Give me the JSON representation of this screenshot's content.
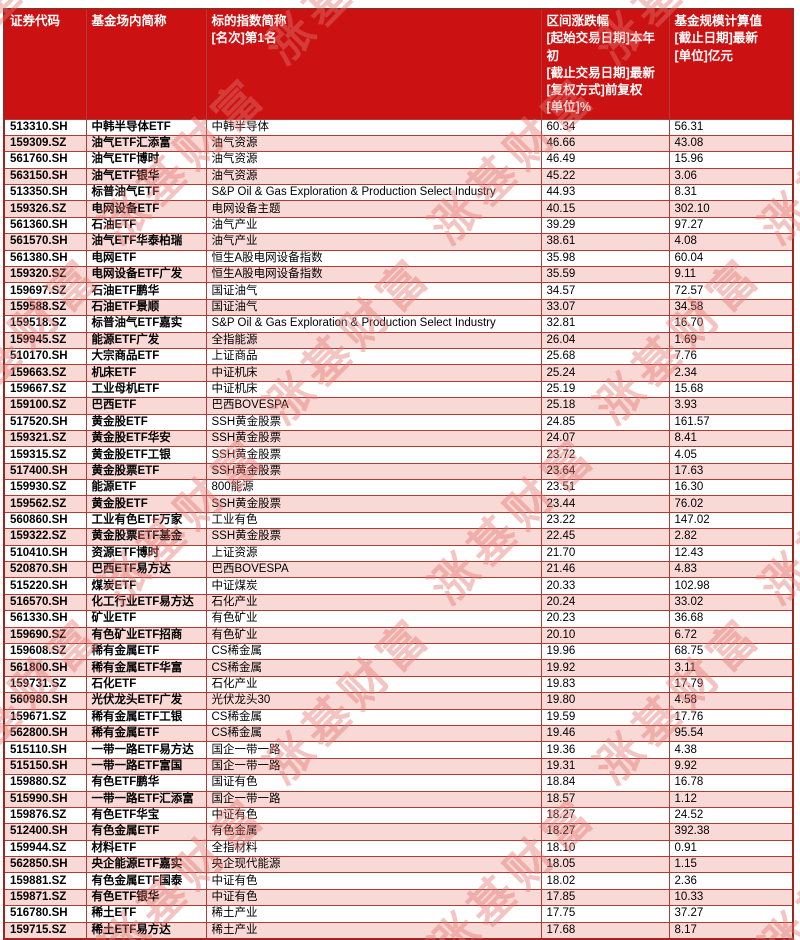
{
  "watermark": {
    "text": "涨基财富"
  },
  "colors": {
    "header_bg": "#cb1111",
    "header_text": "#ffffff",
    "border": "#b23c35",
    "outer_border": "#9c2620",
    "row_pink": "#f9d9d6",
    "row_white": "#ffffff",
    "watermark": "#e4756e"
  },
  "table": {
    "columns": [
      {
        "key": "code",
        "label": "证券代码"
      },
      {
        "key": "name",
        "label": "基金场内简称"
      },
      {
        "key": "index_name",
        "label": "标的指数简称\n[名次]第1名"
      },
      {
        "key": "change",
        "label": "区间涨跌幅\n[起始交易日期]本年初\n[截止交易日期]最新\n[复权方式]前复权\n[单位]%"
      },
      {
        "key": "aum",
        "label": "基金规模计算值\n[截止日期]最新\n[单位]亿元"
      }
    ],
    "rows": [
      {
        "code": "513310.SH",
        "name": "中韩半导体ETF",
        "index_name": "中韩半导体",
        "change": "60.34",
        "aum": "56.31"
      },
      {
        "code": "159309.SZ",
        "name": "油气ETF汇添富",
        "index_name": "油气资源",
        "change": "46.66",
        "aum": "43.08"
      },
      {
        "code": "561760.SH",
        "name": "油气ETF博时",
        "index_name": "油气资源",
        "change": "46.49",
        "aum": "15.96"
      },
      {
        "code": "563150.SH",
        "name": "油气ETF银华",
        "index_name": "油气资源",
        "change": "45.22",
        "aum": "3.06"
      },
      {
        "code": "513350.SH",
        "name": "标普油气ETF",
        "index_name": "S&P Oil & Gas Exploration & Production Select Industry",
        "change": "44.93",
        "aum": "8.31"
      },
      {
        "code": "159326.SZ",
        "name": "电网设备ETF",
        "index_name": "电网设备主题",
        "change": "40.15",
        "aum": "302.10"
      },
      {
        "code": "561360.SH",
        "name": "石油ETF",
        "index_name": "油气产业",
        "change": "39.29",
        "aum": "97.27"
      },
      {
        "code": "561570.SH",
        "name": "油气ETF华泰柏瑞",
        "index_name": "油气产业",
        "change": "38.61",
        "aum": "4.08"
      },
      {
        "code": "561380.SH",
        "name": "电网ETF",
        "index_name": "恒生A股电网设备指数",
        "change": "35.98",
        "aum": "60.04"
      },
      {
        "code": "159320.SZ",
        "name": "电网设备ETF广发",
        "index_name": "恒生A股电网设备指数",
        "change": "35.59",
        "aum": "9.11"
      },
      {
        "code": "159697.SZ",
        "name": "石油ETF鹏华",
        "index_name": "国证油气",
        "change": "34.57",
        "aum": "72.57"
      },
      {
        "code": "159588.SZ",
        "name": "石油ETF景顺",
        "index_name": "国证油气",
        "change": "33.07",
        "aum": "34.58"
      },
      {
        "code": "159518.SZ",
        "name": "标普油气ETF嘉实",
        "index_name": "S&P Oil & Gas Exploration & Production Select Industry",
        "change": "32.81",
        "aum": "16.70"
      },
      {
        "code": "159945.SZ",
        "name": "能源ETF广发",
        "index_name": "全指能源",
        "change": "26.04",
        "aum": "1.69"
      },
      {
        "code": "510170.SH",
        "name": "大宗商品ETF",
        "index_name": "上证商品",
        "change": "25.68",
        "aum": "7.76"
      },
      {
        "code": "159663.SZ",
        "name": "机床ETF",
        "index_name": "中证机床",
        "change": "25.24",
        "aum": "2.34"
      },
      {
        "code": "159667.SZ",
        "name": "工业母机ETF",
        "index_name": "中证机床",
        "change": "25.19",
        "aum": "15.68"
      },
      {
        "code": "159100.SZ",
        "name": "巴西ETF",
        "index_name": "巴西BOVESPA",
        "change": "25.18",
        "aum": "3.93"
      },
      {
        "code": "517520.SH",
        "name": "黄金股ETF",
        "index_name": "SSH黄金股票",
        "change": "24.85",
        "aum": "161.57"
      },
      {
        "code": "159321.SZ",
        "name": "黄金股ETF华安",
        "index_name": "SSH黄金股票",
        "change": "24.07",
        "aum": "8.41"
      },
      {
        "code": "159315.SZ",
        "name": "黄金股ETF工银",
        "index_name": "SSH黄金股票",
        "change": "23.72",
        "aum": "4.05"
      },
      {
        "code": "517400.SH",
        "name": "黄金股票ETF",
        "index_name": "SSH黄金股票",
        "change": "23.64",
        "aum": "17.63"
      },
      {
        "code": "159930.SZ",
        "name": "能源ETF",
        "index_name": "800能源",
        "change": "23.51",
        "aum": "16.30"
      },
      {
        "code": "159562.SZ",
        "name": "黄金股ETF",
        "index_name": "SSH黄金股票",
        "change": "23.44",
        "aum": "76.02"
      },
      {
        "code": "560860.SH",
        "name": "工业有色ETF万家",
        "index_name": "工业有色",
        "change": "23.22",
        "aum": "147.02"
      },
      {
        "code": "159322.SZ",
        "name": "黄金股票ETF基金",
        "index_name": "SSH黄金股票",
        "change": "22.45",
        "aum": "2.82"
      },
      {
        "code": "510410.SH",
        "name": "资源ETF博时",
        "index_name": "上证资源",
        "change": "21.70",
        "aum": "12.43"
      },
      {
        "code": "520870.SH",
        "name": "巴西ETF易方达",
        "index_name": "巴西BOVESPA",
        "change": "21.46",
        "aum": "4.83"
      },
      {
        "code": "515220.SH",
        "name": "煤炭ETF",
        "index_name": "中证煤炭",
        "change": "20.33",
        "aum": "102.98"
      },
      {
        "code": "516570.SH",
        "name": "化工行业ETF易方达",
        "index_name": "石化产业",
        "change": "20.24",
        "aum": "33.02"
      },
      {
        "code": "561330.SH",
        "name": "矿业ETF",
        "index_name": "有色矿业",
        "change": "20.23",
        "aum": "36.68"
      },
      {
        "code": "159690.SZ",
        "name": "有色矿业ETF招商",
        "index_name": "有色矿业",
        "change": "20.10",
        "aum": "6.72"
      },
      {
        "code": "159608.SZ",
        "name": "稀有金属ETF",
        "index_name": "CS稀金属",
        "change": "19.96",
        "aum": "68.75"
      },
      {
        "code": "561800.SH",
        "name": "稀有金属ETF华富",
        "index_name": "CS稀金属",
        "change": "19.92",
        "aum": "3.11"
      },
      {
        "code": "159731.SZ",
        "name": "石化ETF",
        "index_name": "石化产业",
        "change": "19.83",
        "aum": "17.79"
      },
      {
        "code": "560980.SH",
        "name": "光伏龙头ETF广发",
        "index_name": "光伏龙头30",
        "change": "19.80",
        "aum": "4.58"
      },
      {
        "code": "159671.SZ",
        "name": "稀有金属ETF工银",
        "index_name": "CS稀金属",
        "change": "19.59",
        "aum": "17.76"
      },
      {
        "code": "562800.SH",
        "name": "稀有金属ETF",
        "index_name": "CS稀金属",
        "change": "19.46",
        "aum": "95.54"
      },
      {
        "code": "515110.SH",
        "name": "一带一路ETF易方达",
        "index_name": "国企一带一路",
        "change": "19.36",
        "aum": "4.38"
      },
      {
        "code": "515150.SH",
        "name": "一带一路ETF富国",
        "index_name": "国企一带一路",
        "change": "19.31",
        "aum": "9.92"
      },
      {
        "code": "159880.SZ",
        "name": "有色ETF鹏华",
        "index_name": "国证有色",
        "change": "18.84",
        "aum": "16.78"
      },
      {
        "code": "515990.SH",
        "name": "一带一路ETF汇添富",
        "index_name": "国企一带一路",
        "change": "18.57",
        "aum": "1.12"
      },
      {
        "code": "159876.SZ",
        "name": "有色ETF华宝",
        "index_name": "中证有色",
        "change": "18.27",
        "aum": "24.52"
      },
      {
        "code": "512400.SH",
        "name": "有色金属ETF",
        "index_name": "有色金属",
        "change": "18.27",
        "aum": "392.38"
      },
      {
        "code": "159944.SZ",
        "name": "材料ETF",
        "index_name": "全指材料",
        "change": "18.10",
        "aum": "0.91"
      },
      {
        "code": "562850.SH",
        "name": "央企能源ETF嘉实",
        "index_name": "央企现代能源",
        "change": "18.05",
        "aum": "1.15"
      },
      {
        "code": "159881.SZ",
        "name": "有色金属ETF国泰",
        "index_name": "中证有色",
        "change": "18.02",
        "aum": "2.36"
      },
      {
        "code": "159871.SZ",
        "name": "有色ETF银华",
        "index_name": "中证有色",
        "change": "17.85",
        "aum": "10.33"
      },
      {
        "code": "516780.SH",
        "name": "稀土ETF",
        "index_name": "稀土产业",
        "change": "17.75",
        "aum": "37.27"
      },
      {
        "code": "159715.SZ",
        "name": "稀土ETF易方达",
        "index_name": "稀土产业",
        "change": "17.68",
        "aum": "8.17"
      }
    ]
  }
}
